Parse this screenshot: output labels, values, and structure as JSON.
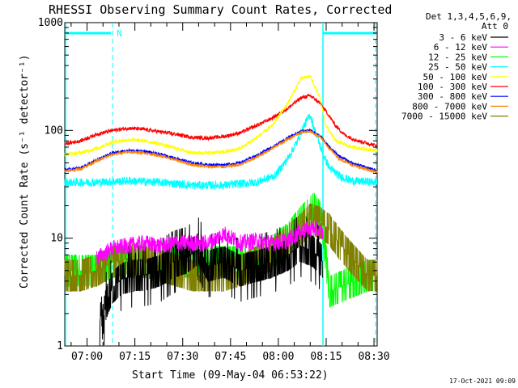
{
  "chart_data": {
    "type": "line",
    "title": "RHESSI Observing Summary Count Rates, Corrected",
    "xlabel": "Start Time (09-May-04 06:53:22)",
    "ylabel": "Corrected Count Rate (s⁻¹ detector⁻¹)",
    "yscale": "log",
    "ylim": [
      1,
      1000
    ],
    "xlim_minutes_after_0653": [
      0,
      98
    ],
    "x_ticks": [
      {
        "label": "07:00",
        "min": 7
      },
      {
        "label": "07:15",
        "min": 22
      },
      {
        "label": "07:30",
        "min": 37
      },
      {
        "label": "07:45",
        "min": 52
      },
      {
        "label": "08:00",
        "min": 67
      },
      {
        "label": "08:15",
        "min": 82
      },
      {
        "label": "08:30",
        "min": 97
      }
    ],
    "y_ticks": [
      {
        "label": "1000",
        "value": 1000
      },
      {
        "label": "100",
        "value": 100
      },
      {
        "label": "10",
        "value": 10
      },
      {
        "label": "1",
        "value": 1
      }
    ],
    "legend_header": [
      "Det 1,3,4,5,6,9,",
      "Att 0"
    ],
    "night_markers": [
      {
        "label": "",
        "start": 0,
        "end": 15
      },
      {
        "label": "N",
        "start": 0,
        "end": 15
      },
      {
        "label": "",
        "start": 81,
        "end": 98
      }
    ],
    "series": [
      {
        "name": "3 - 6 keV",
        "color": "#000000",
        "profile": "low_black",
        "x": [
          11,
          13,
          15,
          18,
          22,
          26,
          30,
          34,
          38,
          42,
          45,
          50,
          55,
          60,
          65,
          70,
          74,
          78,
          80,
          81
        ],
        "values": [
          1.2,
          2.5,
          3.5,
          4.2,
          4.5,
          4.6,
          5.0,
          6.0,
          6.5,
          8.0,
          5.5,
          6.0,
          5.0,
          5.5,
          6.0,
          7.0,
          8.5,
          7.5,
          6.5,
          6.0
        ]
      },
      {
        "name": "6 - 12 keV",
        "color": "#ff00ff",
        "profile": "magenta",
        "x": [
          10,
          15,
          20,
          25,
          30,
          35,
          40,
          45,
          50,
          55,
          60,
          65,
          70,
          74,
          78,
          81
        ],
        "values": [
          6.5,
          8.0,
          8.5,
          9.0,
          8.5,
          9.0,
          9.0,
          9.0,
          11.0,
          9.0,
          9.5,
          9.0,
          9.5,
          11.5,
          12.5,
          11.0
        ]
      },
      {
        "name": "12 - 25 keV",
        "color": "#00ff00",
        "profile": "green",
        "x": [
          0,
          10,
          15,
          20,
          25,
          30,
          35,
          40,
          45,
          50,
          55,
          60,
          65,
          70,
          74,
          78,
          80,
          81,
          83,
          95,
          97
        ],
        "values": [
          5.0,
          5.0,
          6.0,
          6.0,
          6.0,
          6.0,
          6.0,
          6.0,
          6.0,
          6.0,
          6.0,
          6.0,
          7.5,
          10.0,
          14.0,
          19.0,
          16.0,
          12.0,
          3.2,
          4.5,
          4.5
        ]
      },
      {
        "name": "25 - 50 keV",
        "color": "#00ffff",
        "profile": "cyan",
        "x": [
          0,
          10,
          20,
          30,
          40,
          50,
          60,
          66,
          70,
          73,
          75,
          77,
          78,
          79,
          81,
          83,
          86,
          90,
          98
        ],
        "values": [
          33,
          33,
          34,
          33,
          31,
          31,
          33,
          38,
          55,
          80,
          110,
          140,
          110,
          90,
          60,
          45,
          38,
          34,
          33
        ]
      },
      {
        "name": "50 - 100 keV",
        "color": "#ffff00",
        "profile": "yellow",
        "x": [
          0,
          5,
          10,
          15,
          20,
          25,
          30,
          35,
          40,
          45,
          50,
          55,
          60,
          65,
          70,
          74,
          77,
          80,
          82,
          85,
          90,
          98
        ],
        "values": [
          60,
          62,
          68,
          78,
          82,
          80,
          75,
          68,
          62,
          62,
          63,
          68,
          85,
          110,
          180,
          300,
          320,
          200,
          110,
          80,
          70,
          65
        ]
      },
      {
        "name": "100 - 300 keV",
        "color": "#ff0000",
        "profile": "red",
        "x": [
          0,
          5,
          10,
          15,
          20,
          25,
          30,
          35,
          40,
          45,
          50,
          55,
          60,
          65,
          70,
          74,
          77,
          80,
          82,
          85,
          88,
          92,
          98
        ],
        "values": [
          75,
          80,
          92,
          100,
          105,
          102,
          97,
          92,
          86,
          85,
          88,
          95,
          110,
          130,
          160,
          200,
          210,
          180,
          150,
          110,
          90,
          80,
          72
        ]
      },
      {
        "name": "300 - 800 keV",
        "color": "#0000ff",
        "profile": "blue",
        "x": [
          0,
          5,
          10,
          15,
          20,
          25,
          30,
          35,
          40,
          45,
          50,
          55,
          60,
          65,
          70,
          74,
          77,
          80,
          83,
          86,
          90,
          95,
          98
        ],
        "values": [
          43,
          45,
          53,
          62,
          65,
          64,
          60,
          55,
          50,
          48,
          48,
          50,
          58,
          70,
          85,
          98,
          100,
          90,
          70,
          58,
          50,
          45,
          42
        ]
      },
      {
        "name": "800 - 7000 keV",
        "color": "#ff8000",
        "profile": "orange",
        "x": [
          0,
          5,
          10,
          15,
          20,
          25,
          30,
          35,
          40,
          45,
          50,
          55,
          60,
          65,
          70,
          74,
          77,
          80,
          83,
          86,
          90,
          95,
          98
        ],
        "values": [
          42,
          44,
          52,
          60,
          63,
          62,
          58,
          53,
          48,
          46,
          46,
          48,
          56,
          68,
          83,
          96,
          98,
          88,
          68,
          55,
          48,
          43,
          41
        ]
      },
      {
        "name": "7000 - 15000 keV",
        "color": "#808000",
        "profile": "olive",
        "x": [
          0,
          5,
          10,
          15,
          20,
          25,
          30,
          35,
          40,
          45,
          50,
          55,
          60,
          65,
          70,
          74,
          77,
          80,
          83,
          86,
          90,
          95,
          98
        ],
        "values": [
          4.5,
          4.5,
          5.0,
          6.0,
          6.5,
          6.0,
          5.5,
          5.0,
          4.5,
          4.5,
          4.5,
          5.0,
          6.0,
          7.0,
          9.5,
          12.0,
          15.0,
          14.0,
          12.0,
          9.0,
          6.5,
          4.5,
          4.5
        ]
      }
    ]
  },
  "footer": {
    "timestamp": "17-Oct-2021 09:09"
  }
}
